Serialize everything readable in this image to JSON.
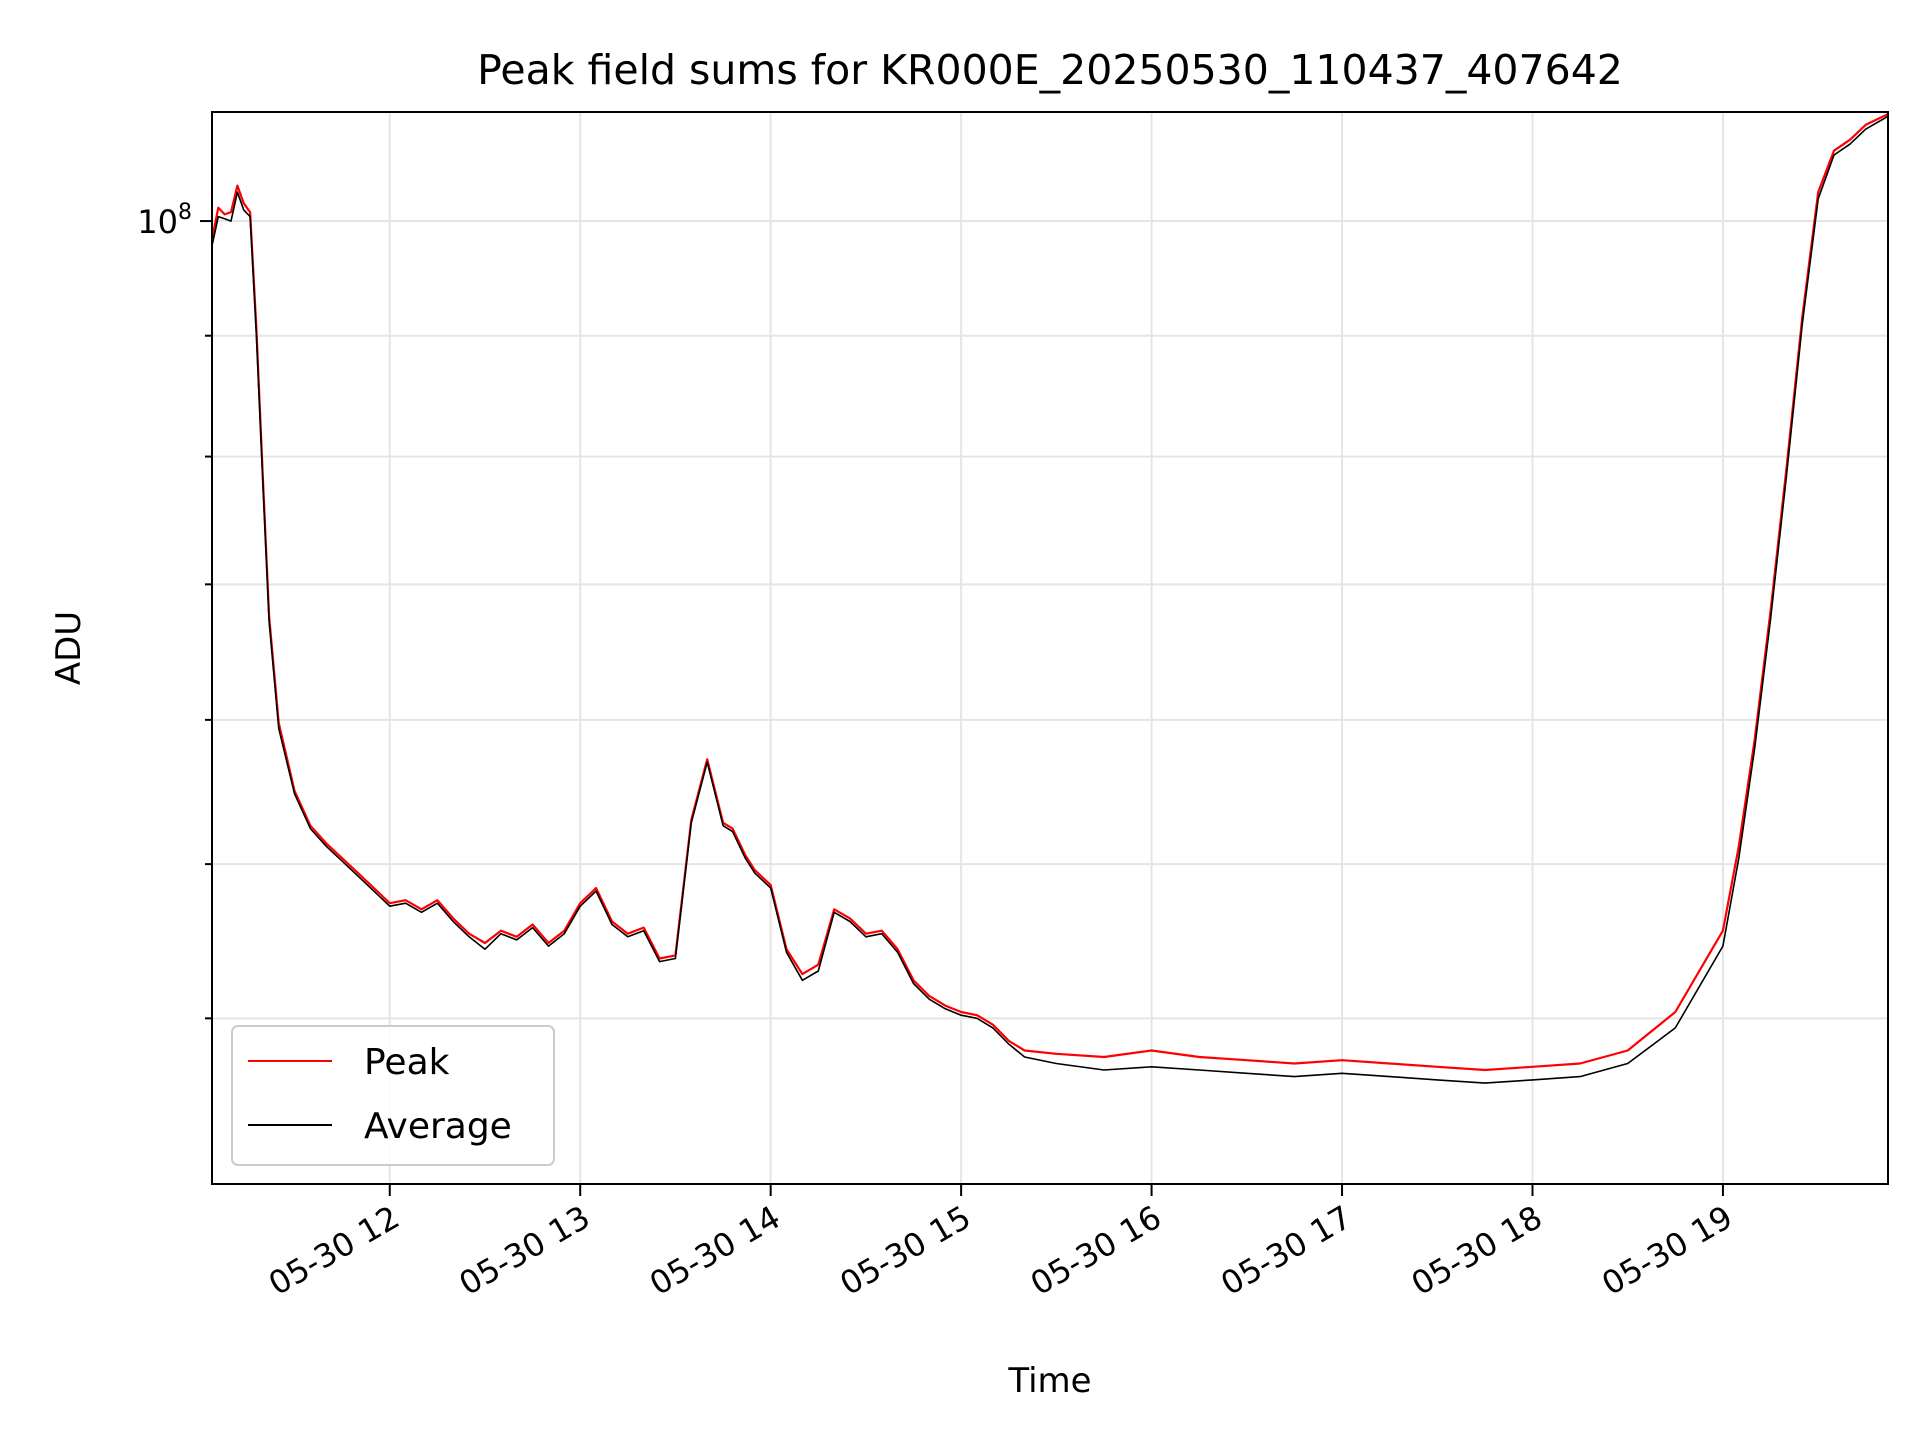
{
  "chart_data": {
    "type": "line",
    "title": "Peak field sums for KR000E_20250530_110437_407642",
    "xlabel": "Time",
    "ylabel": "ADU",
    "yscale": "log",
    "xlim": [
      "2025-05-30 11:04",
      "2025-05-30 19:52"
    ],
    "ylim": [
      65000000,
      105000000
    ],
    "grid": true,
    "legend_position": "lower-left",
    "x_tick_labels": [
      "05-30 12",
      "05-30 13",
      "05-30 14",
      "05-30 15",
      "05-30 16",
      "05-30 17",
      "05-30 18",
      "05-30 19"
    ],
    "y_tick_labels": [
      {
        "base": "10",
        "exponent": "8",
        "value": 100000000
      }
    ],
    "y_minor_ticks": [
      70000000,
      75000000,
      80000000,
      85000000,
      90000000,
      95000000
    ],
    "x": [
      "11:04",
      "11:06",
      "11:08",
      "11:10",
      "11:12",
      "11:14",
      "11:16",
      "11:18",
      "11:20",
      "11:22",
      "11:25",
      "11:30",
      "11:35",
      "11:40",
      "11:45",
      "11:50",
      "11:55",
      "12:00",
      "12:05",
      "12:10",
      "12:15",
      "12:20",
      "12:25",
      "12:30",
      "12:35",
      "12:40",
      "12:45",
      "12:50",
      "12:55",
      "13:00",
      "13:05",
      "13:10",
      "13:15",
      "13:20",
      "13:25",
      "13:30",
      "13:35",
      "13:40",
      "13:45",
      "13:48",
      "13:52",
      "13:55",
      "14:00",
      "14:05",
      "14:10",
      "14:15",
      "14:20",
      "14:25",
      "14:30",
      "14:35",
      "14:40",
      "14:45",
      "14:50",
      "14:55",
      "15:00",
      "15:05",
      "15:10",
      "15:15",
      "15:20",
      "15:30",
      "15:45",
      "16:00",
      "16:15",
      "16:30",
      "16:45",
      "17:00",
      "17:15",
      "17:30",
      "17:45",
      "18:00",
      "18:15",
      "18:30",
      "18:45",
      "19:00",
      "19:05",
      "19:10",
      "19:15",
      "19:20",
      "19:25",
      "19:30",
      "19:35",
      "19:40",
      "19:45",
      "19:52"
    ],
    "series": [
      {
        "name": "Peak",
        "color": "#ff0000",
        "values": [
          99200000,
          100600000,
          100300000,
          100400000,
          101600000,
          100800000,
          100400000,
          95300000,
          89200000,
          83800000,
          79900000,
          77500000,
          76300000,
          75700000,
          75200000,
          74700000,
          74200000,
          73700000,
          73800000,
          73500000,
          73800000,
          73200000,
          72700000,
          72400000,
          72800000,
          72600000,
          73000000,
          72400000,
          72800000,
          73700000,
          74200000,
          73100000,
          72700000,
          72900000,
          71900000,
          72000000,
          76500000,
          78600000,
          76400000,
          76200000,
          75300000,
          74800000,
          74300000,
          72200000,
          71400000,
          71700000,
          73500000,
          73200000,
          72700000,
          72800000,
          72200000,
          71200000,
          70700000,
          70400000,
          70200000,
          70100000,
          69800000,
          69300000,
          69000000,
          68900000,
          68800000,
          69000000,
          68800000,
          68700000,
          68600000,
          68700000,
          68600000,
          68500000,
          68400000,
          68500000,
          68600000,
          69000000,
          70200000,
          72800000,
          75600000,
          79300000,
          84000000,
          89500000,
          95800000,
          101300000,
          103200000,
          103700000,
          104400000,
          104900000
        ]
      },
      {
        "name": "Average",
        "color": "#000000",
        "values": [
          98900000,
          100200000,
          100100000,
          100000000,
          101300000,
          100500000,
          100200000,
          95000000,
          89000000,
          83600000,
          79700000,
          77400000,
          76200000,
          75600000,
          75100000,
          74600000,
          74100000,
          73600000,
          73700000,
          73400000,
          73700000,
          73100000,
          72600000,
          72200000,
          72700000,
          72500000,
          72900000,
          72300000,
          72700000,
          73600000,
          74100000,
          73000000,
          72600000,
          72800000,
          71800000,
          71900000,
          76400000,
          78500000,
          76300000,
          76100000,
          75200000,
          74700000,
          74200000,
          72100000,
          71200000,
          71500000,
          73400000,
          73100000,
          72600000,
          72700000,
          72100000,
          71100000,
          70600000,
          70300000,
          70100000,
          70000000,
          69700000,
          69200000,
          68800000,
          68600000,
          68400000,
          68500000,
          68400000,
          68300000,
          68200000,
          68300000,
          68200000,
          68100000,
          68000000,
          68100000,
          68200000,
          68600000,
          69700000,
          72300000,
          75200000,
          79000000,
          83700000,
          89200000,
          95500000,
          101000000,
          103000000,
          103500000,
          104200000,
          104800000
        ]
      }
    ]
  }
}
